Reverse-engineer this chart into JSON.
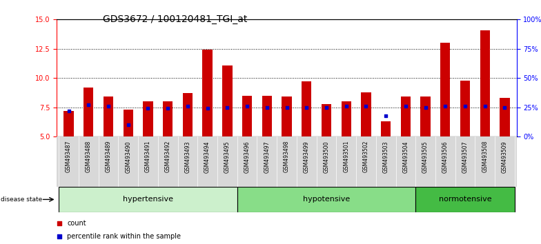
{
  "title": "GDS3672 / 100120481_TGI_at",
  "samples": [
    "GSM493487",
    "GSM493488",
    "GSM493489",
    "GSM493490",
    "GSM493491",
    "GSM493492",
    "GSM493493",
    "GSM493494",
    "GSM493495",
    "GSM493496",
    "GSM493497",
    "GSM493498",
    "GSM493499",
    "GSM493500",
    "GSM493501",
    "GSM493502",
    "GSM493503",
    "GSM493504",
    "GSM493505",
    "GSM493506",
    "GSM493507",
    "GSM493508",
    "GSM493509"
  ],
  "counts": [
    7.2,
    9.2,
    8.4,
    7.3,
    8.0,
    8.0,
    8.7,
    12.4,
    11.1,
    8.5,
    8.5,
    8.4,
    9.7,
    7.8,
    8.0,
    8.8,
    6.3,
    8.4,
    8.4,
    13.0,
    9.8,
    14.1,
    8.3
  ],
  "percentiles": [
    22,
    27,
    26,
    10,
    24,
    24,
    26,
    24,
    25,
    26,
    25,
    25,
    25,
    25,
    26,
    26,
    18,
    26,
    25,
    26,
    26,
    26,
    25
  ],
  "groups": [
    {
      "label": "hypertensive",
      "start": 0,
      "end": 9,
      "color": "#ccf0cc"
    },
    {
      "label": "hypotensive",
      "start": 9,
      "end": 18,
      "color": "#88dd88"
    },
    {
      "label": "normotensive",
      "start": 18,
      "end": 23,
      "color": "#44bb44"
    }
  ],
  "ylim_left": [
    5,
    15
  ],
  "ylim_right": [
    0,
    100
  ],
  "yticks_left": [
    5,
    7.5,
    10,
    12.5,
    15
  ],
  "yticks_right": [
    0,
    25,
    50,
    75,
    100
  ],
  "bar_color": "#cc0000",
  "dot_color": "#0000cc",
  "bar_width": 0.5,
  "background_color": "#ffffff",
  "tick_label_fontsize": 5.5,
  "group_label_fontsize": 8,
  "title_fontsize": 10,
  "n": 23
}
